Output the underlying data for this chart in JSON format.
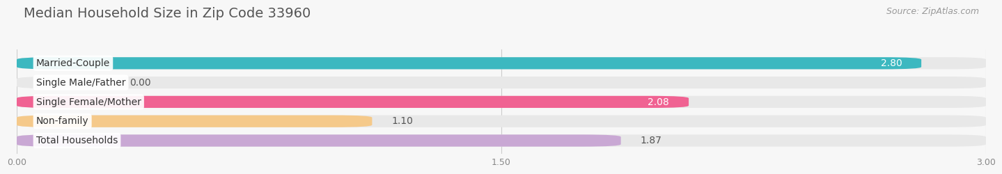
{
  "title": "Median Household Size in Zip Code 33960",
  "source": "Source: ZipAtlas.com",
  "categories": [
    "Married-Couple",
    "Single Male/Father",
    "Single Female/Mother",
    "Non-family",
    "Total Households"
  ],
  "values": [
    2.8,
    0.0,
    2.08,
    1.1,
    1.87
  ],
  "bar_colors": [
    "#3cb8c0",
    "#a0b4e8",
    "#f06292",
    "#f5c98a",
    "#c9a8d4"
  ],
  "value_label_colors": [
    "#ffffff",
    "#555555",
    "#ffffff",
    "#555555",
    "#ffffff"
  ],
  "xlim": [
    0,
    3.0
  ],
  "xticks": [
    0.0,
    1.5,
    3.0
  ],
  "xticklabels": [
    "0.00",
    "1.50",
    "3.00"
  ],
  "background_color": "#f7f7f7",
  "bar_bg_color": "#e8e8e8",
  "title_fontsize": 14,
  "source_fontsize": 9,
  "bar_height": 0.62,
  "bar_label_fontsize": 10,
  "cat_label_fontsize": 10
}
